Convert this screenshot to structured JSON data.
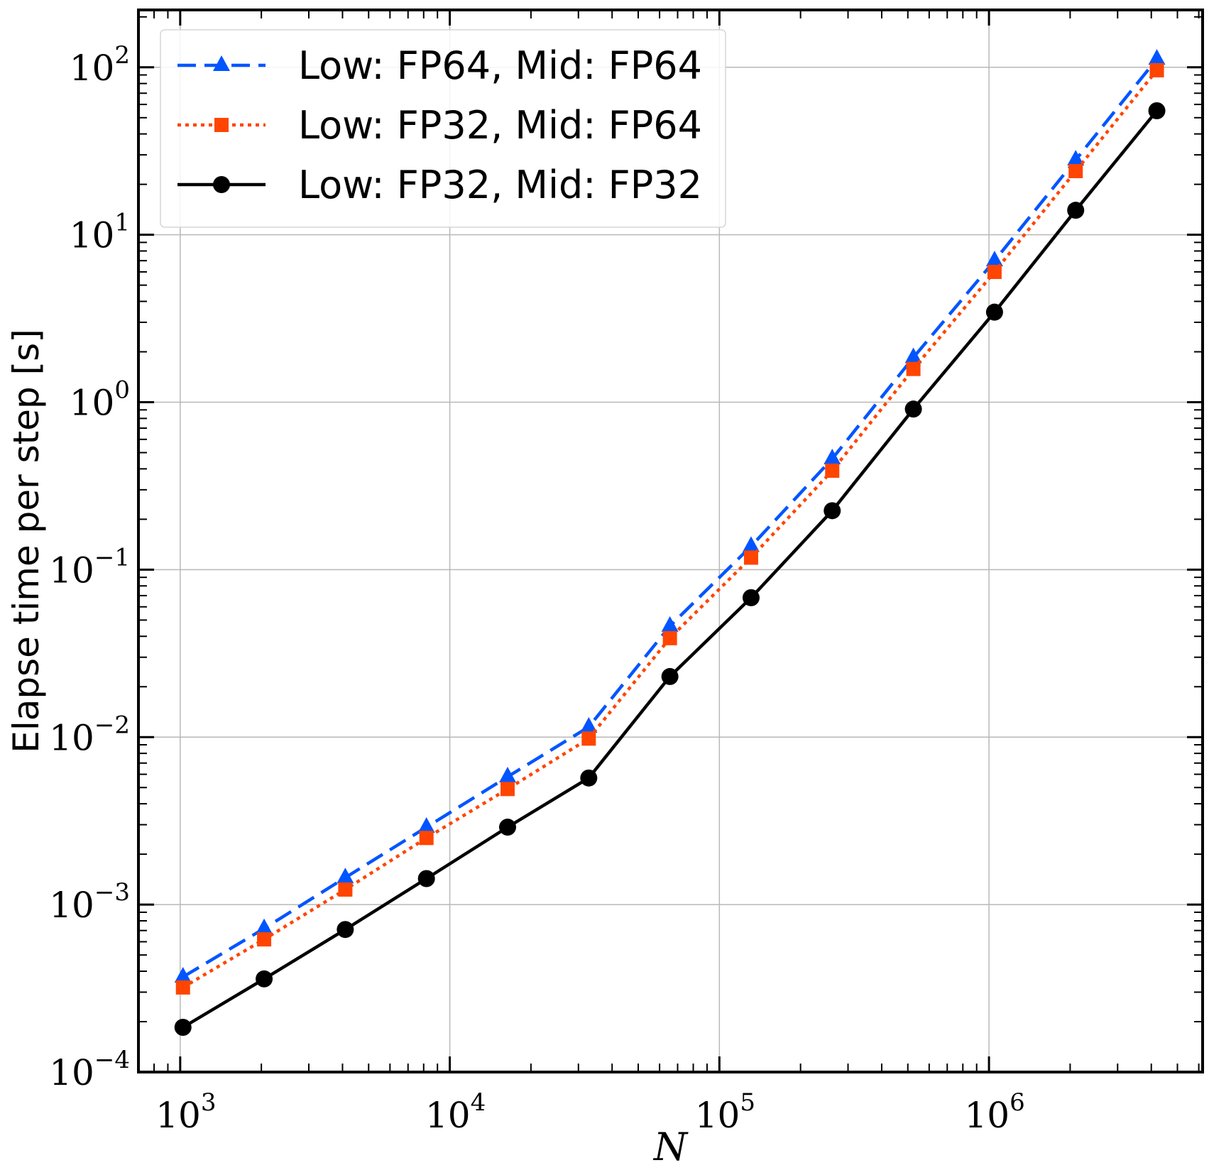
{
  "chart_data": {
    "type": "line",
    "xlabel": "N",
    "ylabel": "Elapse time per step [s]",
    "xscale": "log",
    "yscale": "log",
    "grid": true,
    "legend_position": "top-left",
    "xlim": [
      700,
      6200000
    ],
    "ylim": [
      0.0001,
      220
    ],
    "x_tick_labels": [
      {
        "base": "10",
        "exp": "3",
        "value": 1000
      },
      {
        "base": "10",
        "exp": "4",
        "value": 10000
      },
      {
        "base": "10",
        "exp": "5",
        "value": 100000
      },
      {
        "base": "10",
        "exp": "6",
        "value": 1000000
      }
    ],
    "y_tick_labels": [
      {
        "base": "10",
        "exp": "−4",
        "value": 0.0001
      },
      {
        "base": "10",
        "exp": "−3",
        "value": 0.001
      },
      {
        "base": "10",
        "exp": "−2",
        "value": 0.01
      },
      {
        "base": "10",
        "exp": "−1",
        "value": 0.1
      },
      {
        "base": "10",
        "exp": "0",
        "value": 1
      },
      {
        "base": "10",
        "exp": "1",
        "value": 10
      },
      {
        "base": "10",
        "exp": "2",
        "value": 100
      }
    ],
    "x": [
      1024,
      2048,
      4096,
      8192,
      16384,
      32768,
      65536,
      131072,
      262144,
      524288,
      1048576,
      2097152,
      4194304
    ],
    "series": [
      {
        "name": "Low: FP64, Mid: FP64",
        "color": "#0055ff",
        "line_style": "dashed",
        "marker": "triangle",
        "values": [
          0.00037,
          0.00072,
          0.00145,
          0.0029,
          0.0058,
          0.0115,
          0.046,
          0.138,
          0.46,
          1.85,
          7.0,
          28,
          112
        ]
      },
      {
        "name": "Low: FP32, Mid: FP64",
        "color": "#ff4500",
        "line_style": "dotted",
        "marker": "square",
        "values": [
          0.00032,
          0.00062,
          0.00123,
          0.0025,
          0.0049,
          0.0098,
          0.039,
          0.118,
          0.39,
          1.58,
          6.0,
          24,
          96
        ]
      },
      {
        "name": "Low: FP32, Mid: FP32",
        "color": "#000000",
        "line_style": "solid",
        "marker": "circle",
        "values": [
          0.000185,
          0.00036,
          0.00071,
          0.00143,
          0.0029,
          0.0057,
          0.023,
          0.068,
          0.225,
          0.91,
          3.45,
          14,
          55
        ]
      }
    ]
  }
}
